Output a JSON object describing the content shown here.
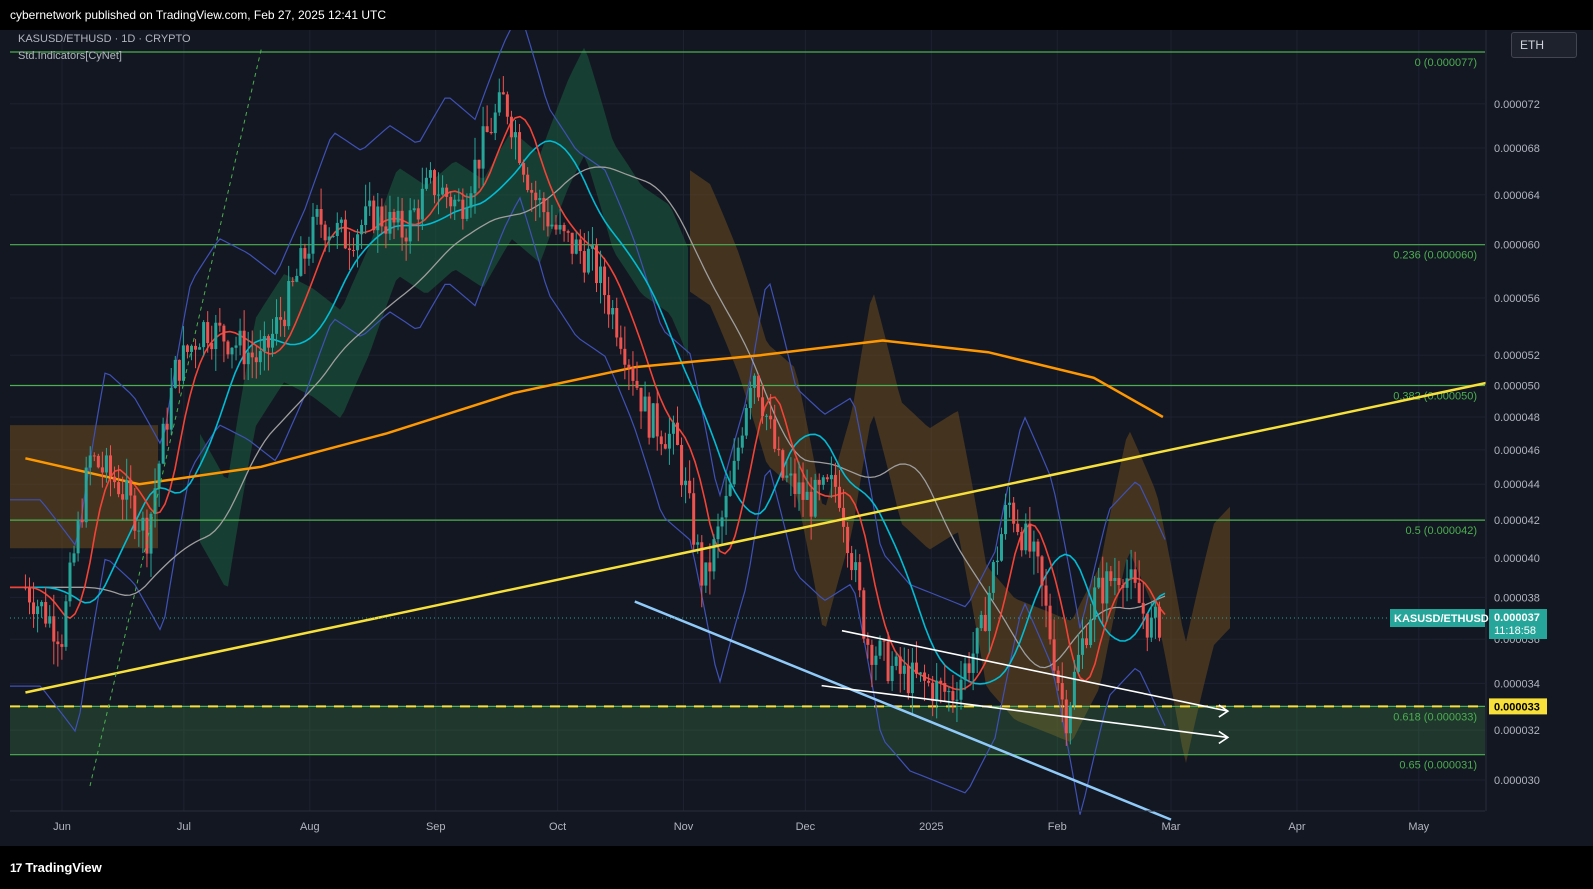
{
  "header": {
    "publish_text": "cybernetwork published on TradingView.com, Feb 27, 2025 12:41 UTC"
  },
  "legend": {
    "symbol_line": "KASUSD/ETHUSD · 1D · CRYPTO",
    "indicator_line": "Std.Indicators[CyNet]"
  },
  "toolbar": {
    "currency": "ETH"
  },
  "footer": {
    "brand": "TradingView",
    "brand_mark": "17"
  },
  "colors": {
    "background": "#131722",
    "up": "#26a69a",
    "down": "#ef5350",
    "fib": "#4caf50",
    "trendline_yellow": "#f7e03a",
    "ma200": "#ff9800",
    "ema_cyan": "#00bcd4",
    "ema_red": "#f44336",
    "sma_gray": "#9e9e9e",
    "bollinger": "#3f51b5",
    "cloud_bull": "#1b5e40",
    "cloud_bear": "#6b4a1e",
    "lower_trend": "#90caf9"
  },
  "chart_data": {
    "type": "candlestick",
    "scale": "log",
    "symbol": "KASUSD/ETHUSD",
    "interval": "1D",
    "x_labels": [
      "Jun",
      "Jul",
      "Aug",
      "Sep",
      "Oct",
      "Nov",
      "Dec",
      "2025",
      "Feb",
      "Mar",
      "Apr",
      "May"
    ],
    "y_ticks": [
      "0.000072",
      "0.000068",
      "0.000064",
      "0.000060",
      "0.000056",
      "0.000052",
      "0.000050",
      "0.000048",
      "0.000046",
      "0.000044",
      "0.000042",
      "0.000040",
      "0.000038",
      "0.000036",
      "0.000034",
      "0.000032",
      "0.000030"
    ],
    "fib_levels": [
      {
        "label": "0 (0.000077)",
        "value": 7.7e-05
      },
      {
        "label": "0.236 (0.000060)",
        "value": 6e-05
      },
      {
        "label": "0.382 (0.000050)",
        "value": 5e-05
      },
      {
        "label": "0.5 (0.000042)",
        "value": 4.2e-05
      },
      {
        "label": "0.618 (0.000033)",
        "value": 3.3e-05
      },
      {
        "label": "0.65 (0.000031)",
        "value": 3.1e-05
      }
    ],
    "last_price": {
      "symbol": "KASUSD/ETHUSD",
      "value": "0.000037",
      "countdown": "11:18:58"
    },
    "level_tag": "0.000033",
    "close_path": [
      {
        "date": "2024-05-23",
        "close": 3.85e-05
      },
      {
        "date": "2024-06-01",
        "close": 3.62e-05
      },
      {
        "date": "2024-06-08",
        "close": 4.55e-05
      },
      {
        "date": "2024-06-15",
        "close": 4.4e-05
      },
      {
        "date": "2024-06-22",
        "close": 4.12e-05
      },
      {
        "date": "2024-06-29",
        "close": 5.1e-05
      },
      {
        "date": "2024-07-06",
        "close": 5.4e-05
      },
      {
        "date": "2024-07-13",
        "close": 5.3e-05
      },
      {
        "date": "2024-07-20",
        "close": 5.15e-05
      },
      {
        "date": "2024-07-27",
        "close": 5.6e-05
      },
      {
        "date": "2024-08-03",
        "close": 6.2e-05
      },
      {
        "date": "2024-08-10",
        "close": 6.05e-05
      },
      {
        "date": "2024-08-17",
        "close": 6.25e-05
      },
      {
        "date": "2024-08-24",
        "close": 6.1e-05
      },
      {
        "date": "2024-08-31",
        "close": 6.5e-05
      },
      {
        "date": "2024-09-07",
        "close": 6.3e-05
      },
      {
        "date": "2024-09-14",
        "close": 6.95e-05
      },
      {
        "date": "2024-09-18",
        "close": 7.25e-05
      },
      {
        "date": "2024-09-25",
        "close": 6.4e-05
      },
      {
        "date": "2024-10-02",
        "close": 6.05e-05
      },
      {
        "date": "2024-10-09",
        "close": 5.9e-05
      },
      {
        "date": "2024-10-16",
        "close": 5.4e-05
      },
      {
        "date": "2024-10-23",
        "close": 4.8e-05
      },
      {
        "date": "2024-10-30",
        "close": 4.65e-05
      },
      {
        "date": "2024-11-06",
        "close": 3.85e-05
      },
      {
        "date": "2024-11-13",
        "close": 4.4e-05
      },
      {
        "date": "2024-11-18",
        "close": 5.15e-05
      },
      {
        "date": "2024-11-25",
        "close": 4.45e-05
      },
      {
        "date": "2024-12-02",
        "close": 4.3e-05
      },
      {
        "date": "2024-12-09",
        "close": 4.4e-05
      },
      {
        "date": "2024-12-16",
        "close": 3.6e-05
      },
      {
        "date": "2024-12-23",
        "close": 3.45e-05
      },
      {
        "date": "2024-12-30",
        "close": 3.4e-05
      },
      {
        "date": "2025-01-06",
        "close": 3.35e-05
      },
      {
        "date": "2025-01-13",
        "close": 3.6e-05
      },
      {
        "date": "2025-01-20",
        "close": 4.3e-05
      },
      {
        "date": "2025-01-27",
        "close": 3.95e-05
      },
      {
        "date": "2025-02-03",
        "close": 3.25e-05
      },
      {
        "date": "2025-02-10",
        "close": 3.8e-05
      },
      {
        "date": "2025-02-17",
        "close": 3.95e-05
      },
      {
        "date": "2025-02-24",
        "close": 3.65e-05
      },
      {
        "date": "2025-02-27",
        "close": 3.7e-05
      }
    ],
    "ma200_path": [
      {
        "date": "2024-05-23",
        "v": 4.55e-05
      },
      {
        "date": "2024-06-20",
        "v": 4.4e-05
      },
      {
        "date": "2024-07-20",
        "v": 4.5e-05
      },
      {
        "date": "2024-08-20",
        "v": 4.7e-05
      },
      {
        "date": "2024-09-20",
        "v": 4.95e-05
      },
      {
        "date": "2024-10-20",
        "v": 5.12e-05
      },
      {
        "date": "2024-11-20",
        "v": 5.2e-05
      },
      {
        "date": "2024-12-20",
        "v": 5.3e-05
      },
      {
        "date": "2025-01-15",
        "v": 5.22e-05
      },
      {
        "date": "2025-02-10",
        "v": 5.05e-05
      },
      {
        "date": "2025-02-27",
        "v": 4.8e-05
      }
    ],
    "yellow_trendline": [
      {
        "date": "2024-05-23",
        "v": 3.36e-05
      },
      {
        "date": "2025-05-20",
        "v": 5.03e-05
      }
    ],
    "blue_trendline": [
      {
        "date": "2024-10-20",
        "v": 3.78e-05
      },
      {
        "date": "2025-03-01",
        "v": 2.85e-05
      }
    ],
    "white_lines": [
      [
        {
          "date": "2024-12-10",
          "v": 3.64e-05
        },
        {
          "date": "2025-03-15",
          "v": 3.28e-05
        }
      ],
      [
        {
          "date": "2024-12-05",
          "v": 3.39e-05
        },
        {
          "date": "2025-03-15",
          "v": 3.17e-05
        }
      ]
    ]
  }
}
